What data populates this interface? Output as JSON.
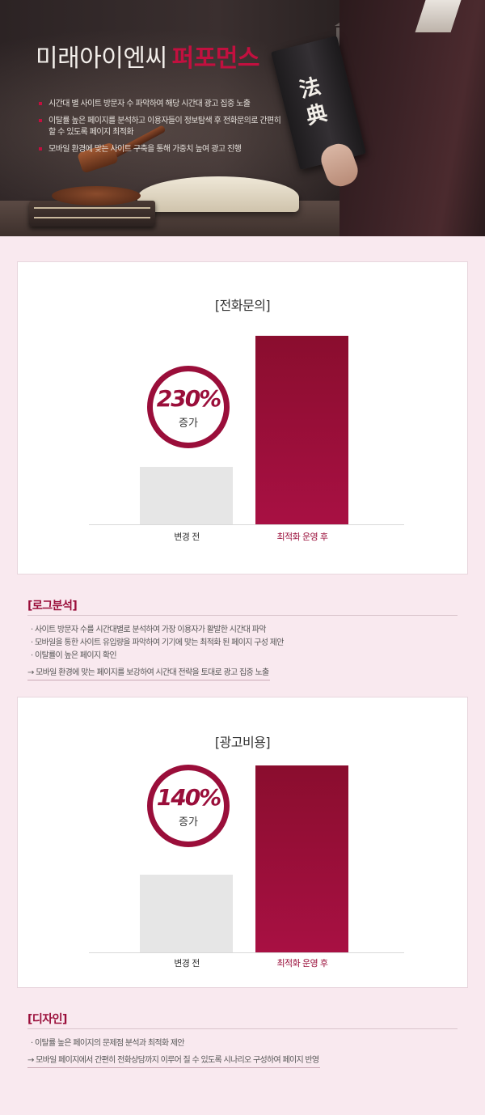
{
  "hero": {
    "title_main": "미래아이엔씨",
    "title_accent": "퍼포먼스",
    "book_text": "法典",
    "bullets": [
      "시간대 별 사이트 방문자 수 파악하여 해당 시간대 광고 집중 노출",
      "이탈률 높은 페이지를 분석하고 이용자들이 정보탐색 후 전화문의로 간편히 할 수 있도록 페이지 최적화",
      "모바일 환경에 맞는 사이트 구축을 통해 가중치 높여 광고 진행"
    ]
  },
  "colors": {
    "accent": "#9a0e3a",
    "bar_gray": "#e6e6e6",
    "background": "#f9e9ef"
  },
  "chart_data": [
    {
      "type": "bar",
      "title": "[전화문의]",
      "categories": [
        "변경 전",
        "최적화 운영 후"
      ],
      "values": [
        1,
        3.3
      ],
      "badge": {
        "value": "230%",
        "label": "증가"
      }
    },
    {
      "type": "bar",
      "title": "[광고비용]",
      "categories": [
        "변경 전",
        "최적화 운영 후"
      ],
      "values": [
        1,
        2.4
      ],
      "badge": {
        "value": "140%",
        "label": "증가"
      }
    }
  ],
  "log_section": {
    "title": "[로그분석]",
    "notes": [
      "· 사이트 방문자 수를 시간대별로 분석하여 가장 이용자가 활발한 시간대 파악",
      "· 모바일을 통한 사이트 유입량을 파악하여 기기에 맞는 최적화 된 페이지 구성 제안",
      "· 이탈률이 높은 페이지 확인"
    ],
    "conclusion": "→ 모바일 환경에 맞는 페이지를 보강하여 시간대 전략을 토대로 광고 집중 노출"
  },
  "design_section": {
    "title": "[디자인]",
    "notes": [
      "· 이탈률 높은 페이지의 문제점 분석과 최적화 제안"
    ],
    "conclusion": "→ 모바일 페이지에서 간편히 전화상담까지 이루어 질 수 있도록 시나리오 구성하여 페이지 반영"
  }
}
